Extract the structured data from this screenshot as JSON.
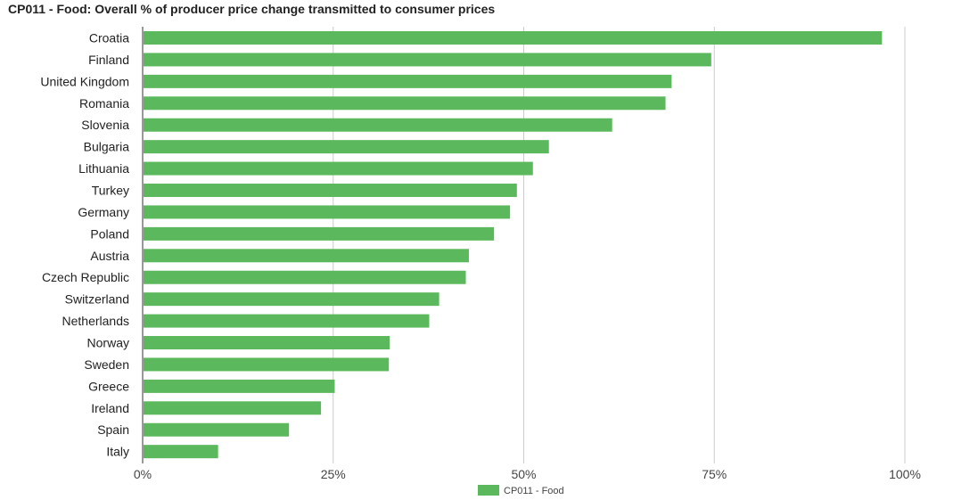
{
  "chart_data": {
    "type": "bar",
    "orientation": "horizontal",
    "title": "CP011 - Food: Overall % of producer price change transmitted to consumer prices",
    "xlabel": "",
    "ylabel": "",
    "xlim": [
      0,
      100
    ],
    "ticks": [
      0,
      25,
      50,
      75,
      100
    ],
    "tick_labels": [
      "0%",
      "25%",
      "50%",
      "75%",
      "100%"
    ],
    "grid": true,
    "legend_position": "bottom-center",
    "bar_color": "#5cb85c",
    "categories": [
      "Croatia",
      "Finland",
      "United Kingdom",
      "Romania",
      "Slovenia",
      "Bulgaria",
      "Lithuania",
      "Turkey",
      "Germany",
      "Poland",
      "Austria",
      "Czech Republic",
      "Switzerland",
      "Netherlands",
      "Norway",
      "Sweden",
      "Greece",
      "Ireland",
      "Spain",
      "Italy"
    ],
    "series": [
      {
        "name": "CP011 - Food",
        "values": [
          97,
          74.6,
          69.4,
          68.6,
          61.6,
          53.3,
          51.2,
          49.1,
          48.2,
          46.1,
          42.8,
          42.4,
          38.9,
          37.6,
          32.4,
          32.3,
          25.2,
          23.4,
          19.2,
          9.9
        ]
      }
    ]
  }
}
